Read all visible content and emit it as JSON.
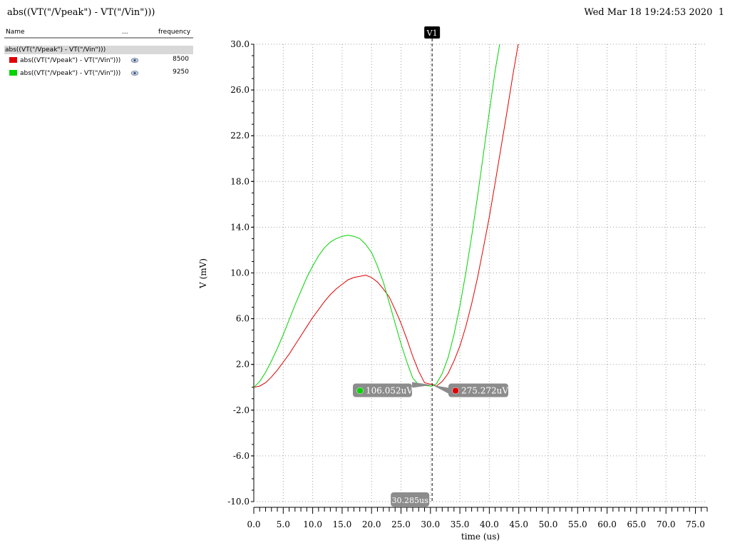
{
  "window": {
    "title": "abs((VT(\"/Vpeak\") - VT(\"/Vin\")))",
    "datetime": "Wed Mar 18 19:24:53 2020",
    "page_number": "1"
  },
  "legend": {
    "col_name": "Name",
    "col_more": "...",
    "col_freq": "frequency",
    "group_label": "abs((VT(\"/Vpeak\") - VT(\"/Vin\")))",
    "rows": [
      {
        "label": "abs((VT(\"/Vpeak\") - VT(\"/Vin\")))",
        "frequency": "8500",
        "color": "#e00000",
        "icon": "eye-icon"
      },
      {
        "label": "abs((VT(\"/Vpeak\") - VT(\"/Vin\")))",
        "frequency": "9250",
        "color": "#00d400",
        "icon": "eye-icon"
      }
    ]
  },
  "marker": {
    "name": "V1",
    "x_value_label": "30.285us",
    "readouts": [
      {
        "label": "106.052uV",
        "color": "#00d400",
        "series": 1
      },
      {
        "label": "275.272uV",
        "color": "#e00000",
        "series": 0
      }
    ]
  },
  "chart_data": {
    "type": "line",
    "xlabel": "time (us)",
    "ylabel": "V (mV)",
    "xlim": [
      0,
      77
    ],
    "ylim": [
      -10,
      30
    ],
    "grid": true,
    "xticks": [
      "0.0",
      "5.0",
      "10.0",
      "15.0",
      "20.0",
      "25.0",
      "30.0",
      "35.0",
      "40.0",
      "45.0",
      "50.0",
      "55.0",
      "60.0",
      "65.0",
      "70.0",
      "75.0"
    ],
    "yticks": [
      "30.0",
      "26.0",
      "22.0",
      "18.0",
      "14.0",
      "10.0",
      "6.0",
      "2.0",
      "-2.0",
      "-6.0",
      "-10.0"
    ],
    "marker_x": 30.285,
    "series": [
      {
        "color": "#e00000",
        "points": [
          [
            0,
            0
          ],
          [
            1,
            0.1
          ],
          [
            2,
            0.4
          ],
          [
            3,
            0.9
          ],
          [
            4,
            1.5
          ],
          [
            5,
            2.2
          ],
          [
            6,
            2.9
          ],
          [
            7,
            3.7
          ],
          [
            8,
            4.5
          ],
          [
            9,
            5.3
          ],
          [
            10,
            6.1
          ],
          [
            11,
            6.8
          ],
          [
            12,
            7.5
          ],
          [
            13,
            8.1
          ],
          [
            14,
            8.6
          ],
          [
            15,
            9.0
          ],
          [
            16,
            9.4
          ],
          [
            17,
            9.6
          ],
          [
            18,
            9.7
          ],
          [
            19,
            9.8
          ],
          [
            20,
            9.6
          ],
          [
            21,
            9.2
          ],
          [
            22,
            8.6
          ],
          [
            23,
            7.9
          ],
          [
            24,
            6.8
          ],
          [
            25,
            5.6
          ],
          [
            26,
            4.2
          ],
          [
            27,
            2.7
          ],
          [
            28,
            1.4
          ],
          [
            29,
            0.4
          ],
          [
            30,
            0.28
          ],
          [
            30.285,
            0.275
          ],
          [
            31,
            0.1
          ],
          [
            32,
            0.5
          ],
          [
            33,
            1.2
          ],
          [
            34,
            2.3
          ],
          [
            35,
            3.6
          ],
          [
            36,
            5.3
          ],
          [
            37,
            7.3
          ],
          [
            38,
            9.6
          ],
          [
            39,
            12.2
          ],
          [
            40,
            14.9
          ],
          [
            41,
            17.9
          ],
          [
            42,
            21.0
          ],
          [
            43,
            24.1
          ],
          [
            44,
            27.3
          ],
          [
            45,
            30.3
          ],
          [
            46,
            32.6
          ]
        ]
      },
      {
        "color": "#00d400",
        "points": [
          [
            0,
            0
          ],
          [
            1,
            0.5
          ],
          [
            2,
            1.3
          ],
          [
            3,
            2.3
          ],
          [
            4,
            3.4
          ],
          [
            5,
            4.6
          ],
          [
            6,
            5.9
          ],
          [
            7,
            7.2
          ],
          [
            8,
            8.4
          ],
          [
            9,
            9.6
          ],
          [
            10,
            10.6
          ],
          [
            11,
            11.5
          ],
          [
            12,
            12.2
          ],
          [
            13,
            12.7
          ],
          [
            14,
            13.0
          ],
          [
            15,
            13.2
          ],
          [
            16,
            13.3
          ],
          [
            17,
            13.2
          ],
          [
            18,
            13.0
          ],
          [
            19,
            12.5
          ],
          [
            20,
            11.8
          ],
          [
            21,
            10.6
          ],
          [
            22,
            9.2
          ],
          [
            23,
            7.4
          ],
          [
            24,
            5.6
          ],
          [
            25,
            3.8
          ],
          [
            26,
            2.2
          ],
          [
            27,
            0.8
          ],
          [
            28,
            0.2
          ],
          [
            29,
            0.15
          ],
          [
            30,
            0.11
          ],
          [
            30.285,
            0.106
          ],
          [
            31,
            0.3
          ],
          [
            32,
            1.2
          ],
          [
            33,
            2.6
          ],
          [
            34,
            4.6
          ],
          [
            35,
            7.1
          ],
          [
            36,
            10.0
          ],
          [
            37,
            13.2
          ],
          [
            38,
            16.7
          ],
          [
            39,
            20.4
          ],
          [
            40,
            24.1
          ],
          [
            41,
            27.7
          ],
          [
            42,
            30.7
          ],
          [
            43,
            32.5
          ]
        ]
      }
    ]
  }
}
